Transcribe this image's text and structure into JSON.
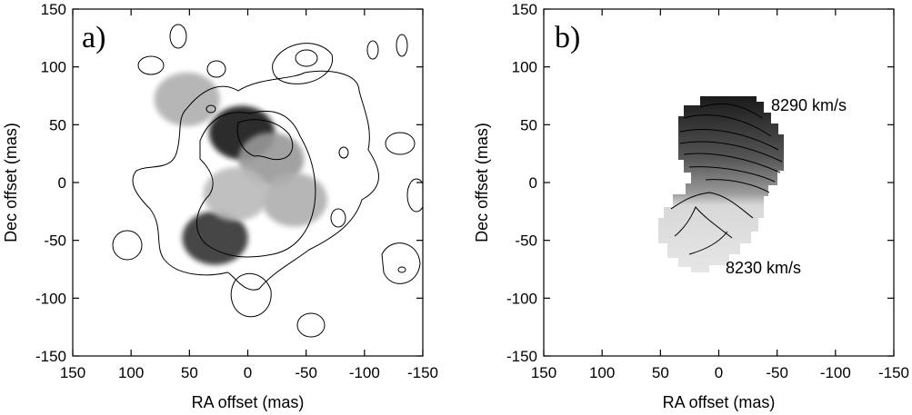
{
  "chart_data": [
    {
      "type": "heatmap",
      "panel_label": "a)",
      "xlabel": "RA offset (mas)",
      "ylabel": "Dec offset (mas)",
      "xlim": [
        150,
        -150
      ],
      "ylim": [
        -150,
        150
      ],
      "x_ticks": [
        150,
        100,
        50,
        0,
        -50,
        -100,
        -150
      ],
      "y_ticks": [
        -150,
        -100,
        -50,
        0,
        50,
        100,
        150
      ],
      "colormap": "grayscale",
      "components": [
        {
          "x": 5,
          "y": 43,
          "intensity": 1.0
        },
        {
          "x": 28,
          "y": -48,
          "intensity": 0.9
        },
        {
          "x": 52,
          "y": 72,
          "intensity": 0.35
        },
        {
          "x": -20,
          "y": 20,
          "intensity": 0.45
        },
        {
          "x": -40,
          "y": -15,
          "intensity": 0.35
        },
        {
          "x": 10,
          "y": -10,
          "intensity": 0.3
        }
      ],
      "contours": "overlaid continuum contours"
    },
    {
      "type": "heatmap",
      "panel_label": "b)",
      "xlabel": "RA offset (mas)",
      "ylabel": "Dec offset (mas)",
      "xlim": [
        150,
        -150
      ],
      "ylim": [
        -150,
        150
      ],
      "x_ticks": [
        150,
        100,
        50,
        0,
        -50,
        -100,
        -150
      ],
      "y_ticks": [
        -150,
        -100,
        -50,
        0,
        50,
        100,
        150
      ],
      "colormap": "grayscale velocity field",
      "velocity_range_kms": [
        8230,
        8290
      ],
      "annotations": [
        {
          "text": "8290 km/s",
          "x": -42,
          "y": 65
        },
        {
          "text": "8230 km/s",
          "x": -5,
          "y": -73
        }
      ]
    }
  ],
  "colors": {
    "frame": "#000000",
    "background": "#ffffff"
  }
}
